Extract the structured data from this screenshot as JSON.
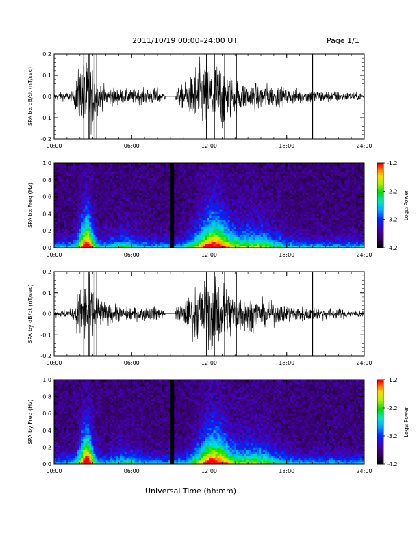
{
  "header": {
    "title": "2011/10/19   00:00–24:00 UT",
    "page": "Page 1/1"
  },
  "xlabel": "Universal Time (hh:mm)",
  "colorbar": {
    "label": "Log₁₀ Power",
    "ticks": [
      "-1.2",
      "-2.2",
      "-3.2",
      "-4.2"
    ],
    "range": [
      -4.2,
      -1.2
    ]
  },
  "chart_data": [
    {
      "type": "line",
      "ylabel": "SPA bx dB/dt (nT/sec)",
      "xlim": [
        0,
        24
      ],
      "ylim": [
        -0.2,
        0.2
      ],
      "xticks": [
        "00:00",
        "06:00",
        "12:00",
        "18:00",
        "24:00"
      ],
      "yticks": [
        "-0.2",
        "-0.1",
        "0.0",
        "0.1",
        "0.2"
      ],
      "envelope": {
        "x_hours": [
          0,
          1.5,
          2.0,
          2.5,
          3.0,
          3.5,
          4.0,
          5.5,
          8.0,
          9.0,
          9.5,
          10.5,
          11.0,
          12.0,
          13.0,
          14.0,
          15.0,
          16.0,
          18.0,
          20.0,
          24.0
        ],
        "amplitude": [
          0.02,
          0.03,
          0.2,
          0.2,
          0.18,
          0.08,
          0.06,
          0.04,
          0.05,
          0.0,
          0.05,
          0.1,
          0.2,
          0.2,
          0.2,
          0.1,
          0.08,
          0.08,
          0.05,
          0.04,
          0.02
        ]
      }
    },
    {
      "type": "heatmap",
      "ylabel": "SPA bx Freq (Hz)",
      "xlim": [
        0,
        24
      ],
      "ylim": [
        0,
        1.0
      ],
      "xticks": [
        "00:00",
        "06:00",
        "12:00",
        "18:00",
        "24:00"
      ],
      "yticks": [
        "0.0",
        "0.2",
        "0.4",
        "0.6",
        "0.8",
        "1.0"
      ],
      "zlim": [
        -4.2,
        -1.2
      ],
      "data_gap_hours": [
        8.9,
        9.3
      ]
    },
    {
      "type": "line",
      "ylabel": "SPA by dB/dt (nT/sec)",
      "xlim": [
        0,
        24
      ],
      "ylim": [
        -0.2,
        0.2
      ],
      "xticks": [
        "00:00",
        "06:00",
        "12:00",
        "18:00",
        "24:00"
      ],
      "yticks": [
        "-0.2",
        "-0.1",
        "0.0",
        "0.1",
        "0.2"
      ],
      "envelope": {
        "x_hours": [
          0,
          1.5,
          2.0,
          2.5,
          3.0,
          3.5,
          4.0,
          5.5,
          8.0,
          9.0,
          9.5,
          10.5,
          11.0,
          12.0,
          13.0,
          14.0,
          15.0,
          16.0,
          18.0,
          20.0,
          24.0
        ],
        "amplitude": [
          0.02,
          0.03,
          0.18,
          0.2,
          0.16,
          0.1,
          0.06,
          0.04,
          0.04,
          0.0,
          0.04,
          0.1,
          0.18,
          0.2,
          0.2,
          0.12,
          0.1,
          0.08,
          0.05,
          0.04,
          0.02
        ]
      }
    },
    {
      "type": "heatmap",
      "ylabel": "SPA by Freq (Hz)",
      "xlim": [
        0,
        24
      ],
      "ylim": [
        0,
        1.0
      ],
      "xticks": [
        "00:00",
        "06:00",
        "12:00",
        "18:00",
        "24:00"
      ],
      "yticks": [
        "0.0",
        "0.2",
        "0.4",
        "0.6",
        "0.8",
        "1.0"
      ],
      "zlim": [
        -4.2,
        -1.2
      ],
      "data_gap_hours": [
        8.9,
        9.3
      ]
    }
  ]
}
